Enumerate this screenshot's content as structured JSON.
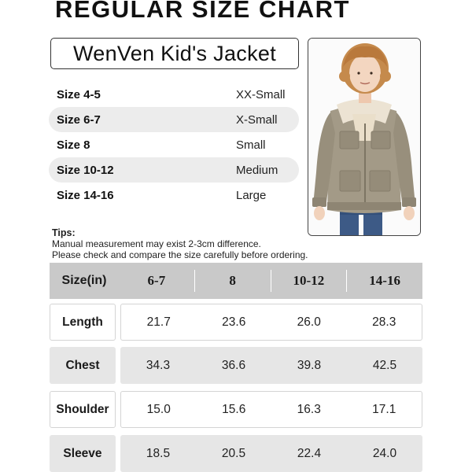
{
  "title": "REGULAR SIZE CHART",
  "brand_line": "WenVen Kid's Jacket",
  "size_map": [
    {
      "size": "Size 4-5",
      "name": "XX-Small"
    },
    {
      "size": "Size 6-7",
      "name": "X-Small"
    },
    {
      "size": "Size 8",
      "name": "Small"
    },
    {
      "size": "Size 10-12",
      "name": "Medium"
    },
    {
      "size": "Size 14-16",
      "name": "Large"
    }
  ],
  "tips": {
    "heading": "Tips:",
    "lines": [
      "Manual measurement may exist 2-3cm difference.",
      "Please check and compare the size carefully before ordering."
    ]
  },
  "table": {
    "corner_label": "Size(in)",
    "columns": [
      "6-7",
      "8",
      "10-12",
      "14-16"
    ],
    "rows": [
      {
        "label": "Length",
        "values": [
          "21.7",
          "23.6",
          "26.0",
          "28.3"
        ]
      },
      {
        "label": "Chest",
        "values": [
          "34.3",
          "36.6",
          "39.8",
          "42.5"
        ]
      },
      {
        "label": "Shoulder",
        "values": [
          "15.0",
          "15.6",
          "16.3",
          "17.1"
        ]
      },
      {
        "label": "Sleeve",
        "values": [
          "18.5",
          "20.5",
          "22.4",
          "24.0"
        ]
      }
    ]
  },
  "colors": {
    "jacket": "#a39a87",
    "sherpa": "#ece3d3",
    "hair": "#c58a4c",
    "jeans": "#3d5a86",
    "header_fill": "#c9c9c9",
    "shaded_row": "#e6e6e6"
  }
}
